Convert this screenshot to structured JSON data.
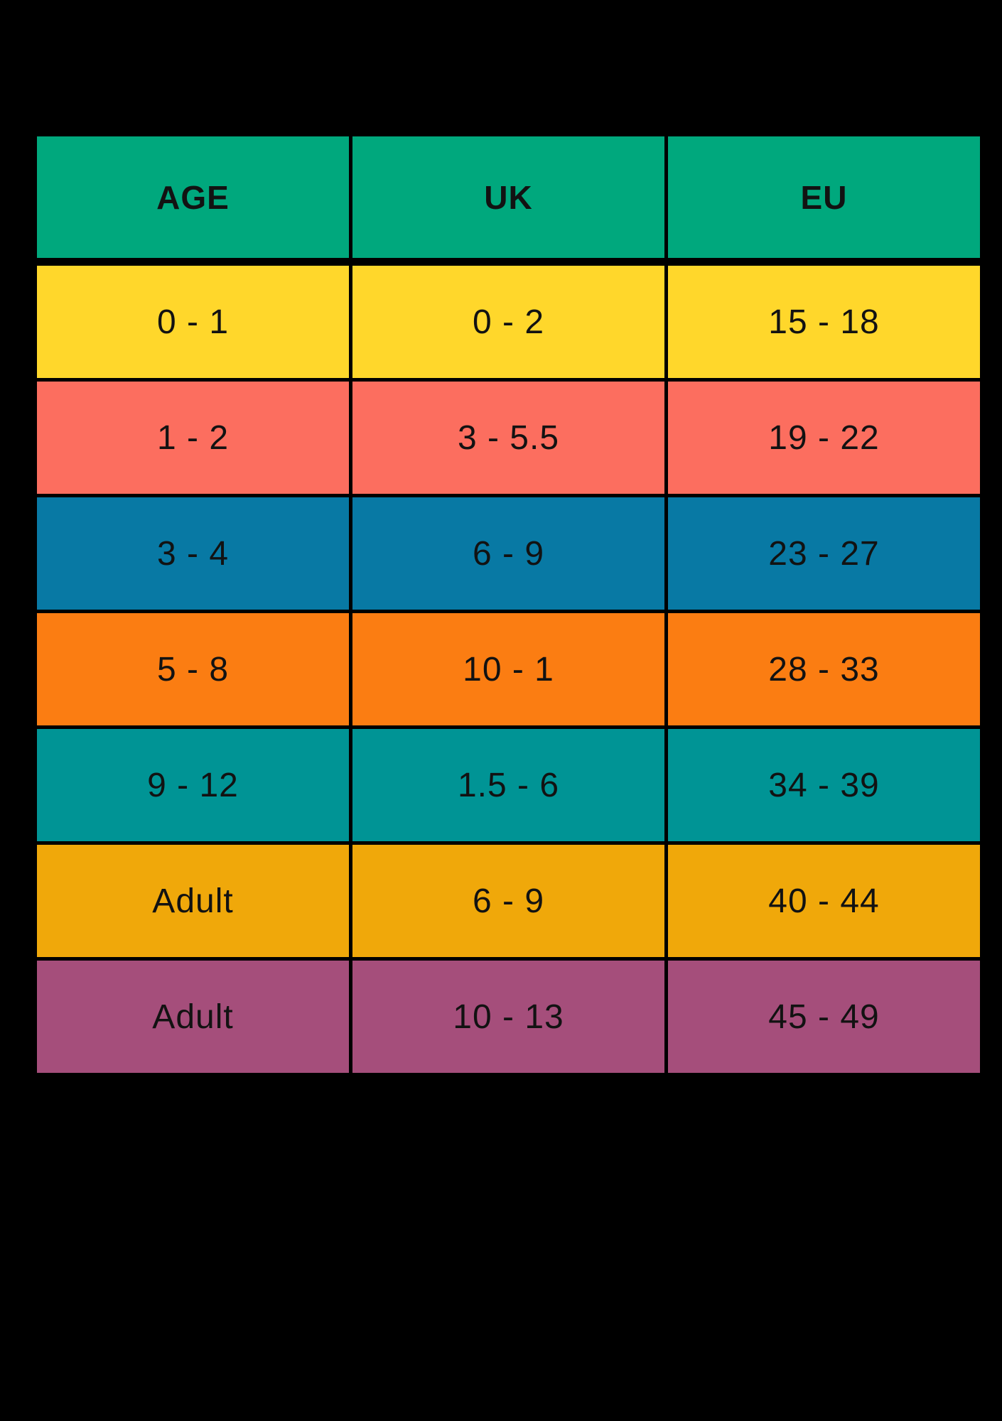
{
  "page": {
    "background_color": "#000000",
    "text_color": "#121212"
  },
  "chart_data": {
    "type": "table",
    "title": "",
    "columns": [
      "AGE",
      "UK",
      "EU"
    ],
    "rows": [
      [
        "0 - 1",
        "0 - 2",
        "15 - 18"
      ],
      [
        "1 - 2",
        "3 - 5.5",
        "19 - 22"
      ],
      [
        "3 - 4",
        "6 - 9",
        "23 - 27"
      ],
      [
        "5 - 8",
        "10 - 1",
        "28 - 33"
      ],
      [
        "9 - 12",
        "1.5 - 6",
        "34 - 39"
      ],
      [
        "Adult",
        "6 - 9",
        "40 - 44"
      ],
      [
        "Adult",
        "10 - 13",
        "45 - 49"
      ]
    ],
    "header_color": "#00A87D",
    "row_colors": [
      "#FFD72B",
      "#FC6E5F",
      "#0879A4",
      "#FB7D12",
      "#009495",
      "#F0A80A",
      "#A54E7B"
    ],
    "layout": {
      "grid": "black gaps between cells",
      "legend": "none",
      "columns_equal_width": true
    }
  }
}
